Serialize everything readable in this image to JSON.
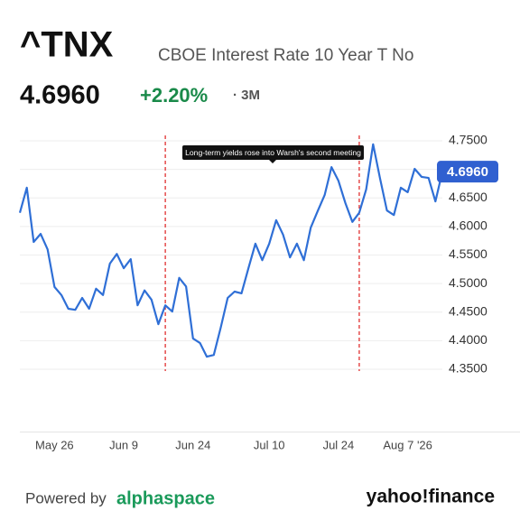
{
  "header": {
    "symbol": "^TNX",
    "name": "CBOE Interest Rate 10 Year T No",
    "change": "+2.20%",
    "range": "· 3M"
  },
  "footer": {
    "powered": "Powered by",
    "brand": "alphaspace",
    "source": "yahoo!finance"
  },
  "chart_data": {
    "type": "line",
    "annotation": "Long-term yields rose into Warsh's second meeting",
    "current": {
      "value": 4.696,
      "label": "4.6960"
    },
    "event_indices": [
      21,
      49
    ],
    "categories": [
      null,
      null,
      null,
      null,
      null,
      "May 26",
      null,
      null,
      null,
      null,
      null,
      null,
      null,
      null,
      null,
      "Jun 9",
      null,
      null,
      null,
      null,
      null,
      null,
      null,
      null,
      null,
      "Jun 24",
      null,
      null,
      null,
      null,
      null,
      null,
      null,
      null,
      null,
      null,
      "Jul 10",
      null,
      null,
      null,
      null,
      null,
      null,
      null,
      null,
      null,
      "Jul 24",
      null,
      null,
      null,
      null,
      null,
      null,
      null,
      null,
      null,
      "Aug 7 '26",
      null,
      null,
      null,
      null,
      null
    ],
    "series": [
      {
        "name": "^TNX",
        "color": "#2f6fd6",
        "values": [
          4.624,
          4.668,
          4.573,
          4.587,
          4.56,
          4.494,
          4.48,
          4.456,
          4.454,
          4.475,
          4.456,
          4.491,
          4.48,
          4.535,
          4.552,
          4.527,
          4.543,
          4.462,
          4.488,
          4.472,
          4.429,
          4.462,
          4.451,
          4.51,
          4.495,
          4.404,
          4.396,
          4.372,
          4.375,
          4.423,
          4.475,
          4.486,
          4.483,
          4.527,
          4.57,
          4.541,
          4.57,
          4.611,
          4.586,
          4.546,
          4.57,
          4.541,
          4.598,
          4.627,
          4.655,
          4.704,
          4.68,
          4.641,
          4.608,
          4.624,
          4.665,
          4.744,
          4.684,
          4.628,
          4.62,
          4.668,
          4.66,
          4.701,
          4.687,
          4.685,
          4.644,
          4.696
        ]
      }
    ],
    "ylim": [
      4.24,
      4.76
    ],
    "yticks": [
      {
        "value": 4.35,
        "label": "4.3500"
      },
      {
        "value": 4.4,
        "label": "4.4000"
      },
      {
        "value": 4.45,
        "label": "4.4500"
      },
      {
        "value": 4.5,
        "label": "4.5000"
      },
      {
        "value": 4.55,
        "label": "4.5500"
      },
      {
        "value": 4.6,
        "label": "4.6000"
      },
      {
        "value": 4.65,
        "label": "4.6500"
      },
      {
        "value": 4.7,
        "label": "4.7000"
      },
      {
        "value": 4.75,
        "label": "4.7500"
      }
    ],
    "grid": true
  }
}
